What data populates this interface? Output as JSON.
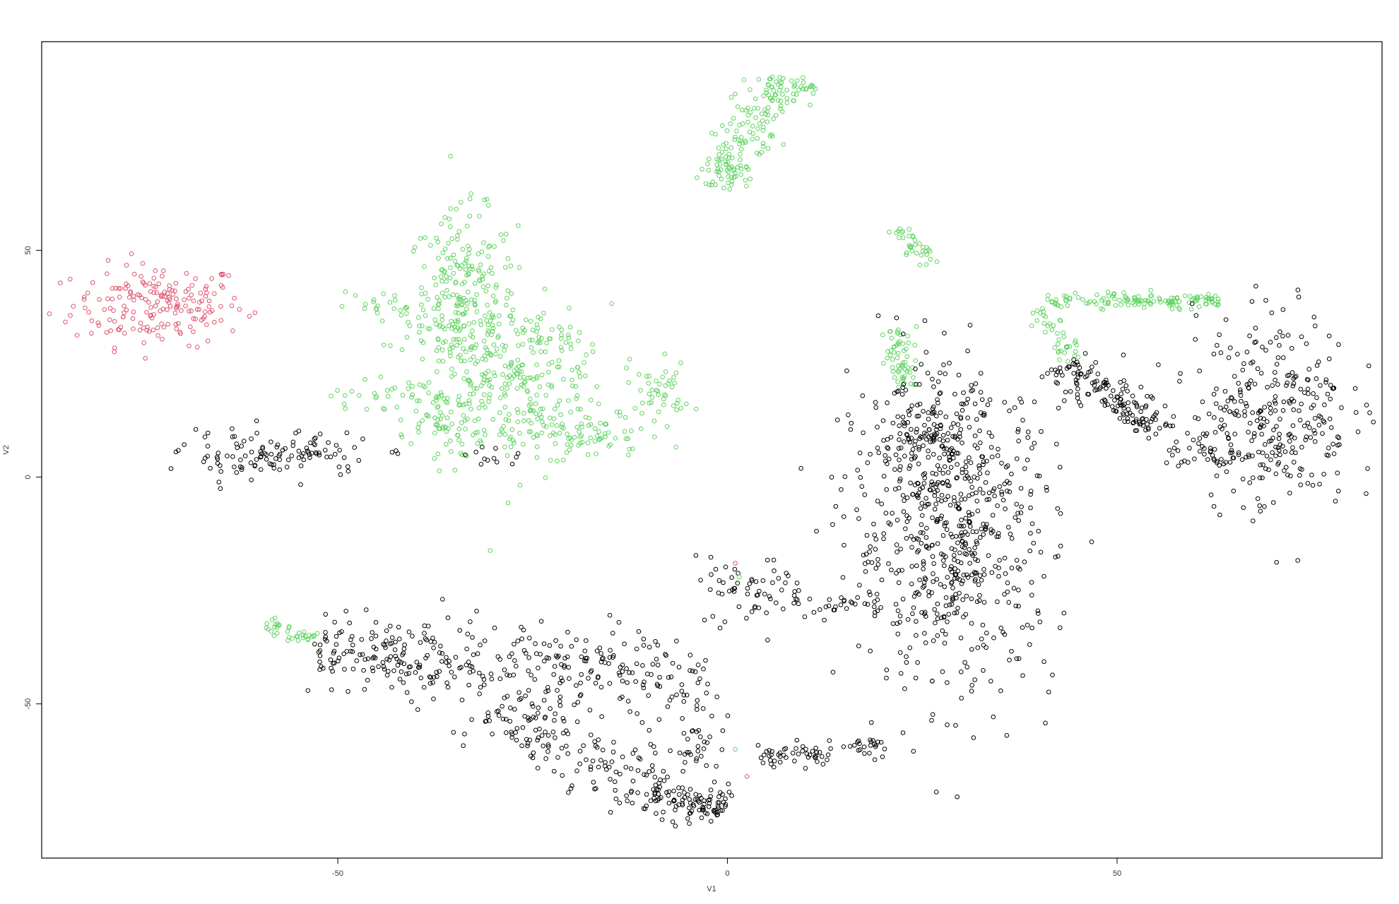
{
  "chart_data": {
    "type": "scatter",
    "xlabel": "V1",
    "ylabel": "V2",
    "xlim": [
      -88,
      84
    ],
    "ylim": [
      -84,
      96
    ],
    "x_ticks": [
      -50,
      0,
      50
    ],
    "y_ticks": [
      -50,
      0,
      50
    ],
    "x_tick_labels": [
      "-50",
      "0",
      "50"
    ],
    "y_tick_labels": [
      "-50",
      "0",
      "50"
    ],
    "grid": false,
    "point_style": "open-circle",
    "colors": {
      "black": "#000000",
      "green": "#5FD35F",
      "red": "#DF536B"
    },
    "clusters": [
      {
        "color": "red",
        "kind": "blob",
        "count": 190,
        "center": [
          -73,
          38
        ],
        "spread": [
          5.5,
          4.5
        ]
      },
      {
        "color": "green",
        "kind": "blob",
        "count": 260,
        "center": [
          -34,
          38
        ],
        "spread": [
          3.5,
          10
        ]
      },
      {
        "color": "green",
        "kind": "blob",
        "count": 260,
        "center": [
          -27,
          20
        ],
        "spread": [
          6,
          9
        ]
      },
      {
        "color": "green",
        "kind": "blob",
        "count": 60,
        "center": [
          -37,
          14
        ],
        "spread": [
          2.5,
          3.5
        ]
      },
      {
        "color": "green",
        "kind": "blob",
        "count": 25,
        "center": [
          -44,
          37
        ],
        "spread": [
          3,
          2
        ]
      },
      {
        "color": "green",
        "kind": "blob",
        "count": 20,
        "center": [
          -46,
          18
        ],
        "spread": [
          2.5,
          2
        ]
      },
      {
        "color": "green",
        "kind": "blob",
        "count": 22,
        "center": [
          -23,
          31
        ],
        "spread": [
          2,
          1.5
        ]
      },
      {
        "color": "green",
        "kind": "blob",
        "count": 70,
        "center": [
          -18,
          9
        ],
        "spread": [
          5,
          2.5
        ]
      },
      {
        "color": "green",
        "kind": "blob",
        "count": 40,
        "center": [
          -8.5,
          19
        ],
        "spread": [
          1.5,
          3
        ]
      },
      {
        "color": "green",
        "kind": "line",
        "count": 170,
        "from": [
          -1.5,
          64
        ],
        "to": [
          7,
          88
        ],
        "spread": 1.8
      },
      {
        "color": "green",
        "kind": "blob",
        "count": 18,
        "center": [
          9.5,
          86
        ],
        "spread": [
          1.2,
          0.8
        ]
      },
      {
        "color": "green",
        "kind": "line",
        "count": 35,
        "from": [
          22,
          55
        ],
        "to": [
          26,
          46
        ],
        "spread": 0.9
      },
      {
        "color": "green",
        "kind": "line",
        "count": 60,
        "from": [
          21,
          33
        ],
        "to": [
          23,
          20
        ],
        "spread": 1.0
      },
      {
        "color": "green",
        "kind": "line",
        "count": 130,
        "from": [
          41,
          39
        ],
        "to": [
          63,
          39
        ],
        "spread": 0.8
      },
      {
        "color": "green",
        "kind": "line",
        "count": 40,
        "from": [
          40,
          37
        ],
        "to": [
          45,
          26
        ],
        "spread": 0.9
      },
      {
        "color": "green",
        "kind": "line",
        "count": 35,
        "from": [
          -59,
          -32
        ],
        "to": [
          -53,
          -36
        ],
        "spread": 0.9
      },
      {
        "color": "black",
        "kind": "blob",
        "count": 120,
        "center": [
          -58,
          5
        ],
        "spread": [
          6,
          2.5
        ]
      },
      {
        "color": "black",
        "kind": "blob",
        "count": 12,
        "center": [
          -30,
          4.5
        ],
        "spread": [
          2,
          1
        ]
      },
      {
        "color": "black",
        "kind": "blob",
        "count": 620,
        "center": [
          29,
          -13
        ],
        "spread": [
          6.5,
          17
        ]
      },
      {
        "color": "black",
        "kind": "blob",
        "count": 150,
        "center": [
          26,
          8
        ],
        "spread": [
          4,
          6
        ]
      },
      {
        "color": "black",
        "kind": "line",
        "count": 150,
        "from": [
          43,
          25
        ],
        "to": [
          56,
          10
        ],
        "spread": 2.0
      },
      {
        "color": "black",
        "kind": "blob",
        "count": 300,
        "center": [
          70,
          15
        ],
        "spread": [
          5,
          11
        ]
      },
      {
        "color": "black",
        "kind": "blob",
        "count": 40,
        "center": [
          62,
          5
        ],
        "spread": [
          3,
          2
        ]
      },
      {
        "color": "black",
        "kind": "blob",
        "count": 60,
        "center": [
          3,
          -25
        ],
        "spread": [
          3.5,
          3.5
        ]
      },
      {
        "color": "black",
        "kind": "line",
        "count": 30,
        "from": [
          8,
          -27
        ],
        "to": [
          20,
          -29
        ],
        "spread": 1.2
      },
      {
        "color": "black",
        "kind": "line",
        "count": 340,
        "from": [
          -53,
          -37
        ],
        "to": [
          -2,
          -44
        ],
        "spread": 4.5
      },
      {
        "color": "black",
        "kind": "line",
        "count": 160,
        "from": [
          -30,
          -50
        ],
        "to": [
          -10,
          -70
        ],
        "spread": 3.5
      },
      {
        "color": "black",
        "kind": "line",
        "count": 100,
        "from": [
          -10,
          -70
        ],
        "to": [
          0,
          -73
        ],
        "spread": 2.0
      },
      {
        "color": "black",
        "kind": "blob",
        "count": 40,
        "center": [
          -4,
          -58
        ],
        "spread": [
          2,
          6
        ]
      },
      {
        "color": "black",
        "kind": "line",
        "count": 70,
        "from": [
          4,
          -62
        ],
        "to": [
          20,
          -59
        ],
        "spread": 1.2
      }
    ],
    "accent_points": [
      {
        "color": "red",
        "x": 1,
        "y": -19
      },
      {
        "color": "red",
        "x": 2.5,
        "y": -66
      },
      {
        "color": "red",
        "x": -87,
        "y": 36
      },
      {
        "color": "green",
        "x": 1.5,
        "y": -22
      },
      {
        "color": "green",
        "x": 1,
        "y": -60
      },
      {
        "color": "green",
        "x": -4,
        "y": 15
      }
    ]
  }
}
